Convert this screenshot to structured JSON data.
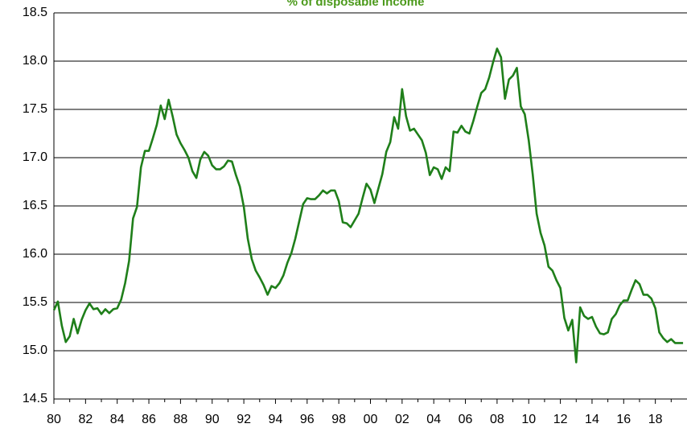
{
  "chart_data": {
    "type": "line",
    "title": "% of disposable income",
    "x": [
      1980,
      1980.25,
      1980.5,
      1980.75,
      1981,
      1981.25,
      1981.5,
      1981.75,
      1982,
      1982.25,
      1982.5,
      1982.75,
      1983,
      1983.25,
      1983.5,
      1983.75,
      1984,
      1984.25,
      1984.5,
      1984.75,
      1985,
      1985.25,
      1985.5,
      1985.75,
      1986,
      1986.25,
      1986.5,
      1986.75,
      1987,
      1987.25,
      1987.5,
      1987.75,
      1988,
      1988.25,
      1988.5,
      1988.75,
      1989,
      1989.25,
      1989.5,
      1989.75,
      1990,
      1990.25,
      1990.5,
      1990.75,
      1991,
      1991.25,
      1991.5,
      1991.75,
      1992,
      1992.25,
      1992.5,
      1992.75,
      1993,
      1993.25,
      1993.5,
      1993.75,
      1994,
      1994.25,
      1994.5,
      1994.75,
      1995,
      1995.25,
      1995.5,
      1995.75,
      1996,
      1996.25,
      1996.5,
      1996.75,
      1997,
      1997.25,
      1997.5,
      1997.75,
      1998,
      1998.25,
      1998.5,
      1998.75,
      1999,
      1999.25,
      1999.5,
      1999.75,
      2000,
      2000.25,
      2000.5,
      2000.75,
      2001,
      2001.25,
      2001.5,
      2001.75,
      2002,
      2002.25,
      2002.5,
      2002.75,
      2003,
      2003.25,
      2003.5,
      2003.75,
      2004,
      2004.25,
      2004.5,
      2004.75,
      2005,
      2005.25,
      2005.5,
      2005.75,
      2006,
      2006.25,
      2006.5,
      2006.75,
      2007,
      2007.25,
      2007.5,
      2007.75,
      2008,
      2008.25,
      2008.5,
      2008.75,
      2009,
      2009.25,
      2009.5,
      2009.75,
      2010,
      2010.25,
      2010.5,
      2010.75,
      2011,
      2011.25,
      2011.5,
      2011.75,
      2012,
      2012.25,
      2012.5,
      2012.75,
      2013,
      2013.25,
      2013.5,
      2013.75,
      2014,
      2014.25,
      2014.5,
      2014.75,
      2015,
      2015.25,
      2015.5,
      2015.75,
      2016,
      2016.25,
      2016.5,
      2016.75,
      2017,
      2017.25,
      2017.5,
      2017.75,
      2018,
      2018.25,
      2018.5,
      2018.75,
      2019,
      2019.25,
      2019.5,
      2019.75
    ],
    "series": [
      {
        "color": "#1f7f1a",
        "values": [
          15.42,
          15.51,
          15.26,
          15.09,
          15.15,
          15.33,
          15.18,
          15.32,
          15.42,
          15.49,
          15.43,
          15.44,
          15.38,
          15.43,
          15.39,
          15.43,
          15.44,
          15.53,
          15.7,
          15.93,
          16.37,
          16.49,
          16.9,
          17.07,
          17.07,
          17.2,
          17.34,
          17.54,
          17.4,
          17.6,
          17.43,
          17.24,
          17.15,
          17.08,
          17.0,
          16.86,
          16.79,
          16.98,
          17.06,
          17.02,
          16.92,
          16.88,
          16.88,
          16.91,
          16.97,
          16.96,
          16.82,
          16.7,
          16.49,
          16.16,
          15.95,
          15.83,
          15.76,
          15.68,
          15.58,
          15.67,
          15.65,
          15.7,
          15.78,
          15.91,
          16.01,
          16.16,
          16.34,
          16.52,
          16.58,
          16.57,
          16.57,
          16.61,
          16.66,
          16.63,
          16.66,
          16.66,
          16.55,
          16.33,
          16.32,
          16.28,
          16.35,
          16.42,
          16.58,
          16.73,
          16.67,
          16.53,
          16.68,
          16.83,
          17.06,
          17.16,
          17.42,
          17.3,
          17.71,
          17.43,
          17.28,
          17.3,
          17.24,
          17.18,
          17.05,
          16.82,
          16.9,
          16.88,
          16.78,
          16.9,
          16.86,
          17.27,
          17.26,
          17.33,
          17.27,
          17.25,
          17.38,
          17.53,
          17.67,
          17.71,
          17.83,
          17.99,
          18.13,
          18.04,
          17.61,
          17.81,
          17.85,
          17.93,
          17.53,
          17.45,
          17.18,
          16.83,
          16.42,
          16.22,
          16.09,
          15.87,
          15.83,
          15.73,
          15.65,
          15.34,
          15.21,
          15.32,
          14.88,
          15.45,
          15.36,
          15.33,
          15.35,
          15.25,
          15.18,
          15.17,
          15.19,
          15.33,
          15.38,
          15.47,
          15.52,
          15.52,
          15.63,
          15.73,
          15.69,
          15.58,
          15.58,
          15.54,
          15.44,
          15.19,
          15.13,
          15.09,
          15.12,
          15.08,
          15.08,
          15.08
        ]
      }
    ],
    "xlim": [
      1980,
      2020
    ],
    "xticks": [
      {
        "value": 1980,
        "label": "80"
      },
      {
        "value": 1982,
        "label": "82"
      },
      {
        "value": 1984,
        "label": "84"
      },
      {
        "value": 1986,
        "label": "86"
      },
      {
        "value": 1988,
        "label": "88"
      },
      {
        "value": 1990,
        "label": "90"
      },
      {
        "value": 1992,
        "label": "92"
      },
      {
        "value": 1994,
        "label": "94"
      },
      {
        "value": 1996,
        "label": "96"
      },
      {
        "value": 1998,
        "label": "98"
      },
      {
        "value": 2000,
        "label": "00"
      },
      {
        "value": 2002,
        "label": "02"
      },
      {
        "value": 2004,
        "label": "04"
      },
      {
        "value": 2006,
        "label": "06"
      },
      {
        "value": 2008,
        "label": "08"
      },
      {
        "value": 2010,
        "label": "10"
      },
      {
        "value": 2012,
        "label": "12"
      },
      {
        "value": 2014,
        "label": "14"
      },
      {
        "value": 2016,
        "label": "16"
      },
      {
        "value": 2018,
        "label": "18"
      }
    ],
    "xminorticks": [
      1981,
      1983,
      1985,
      1987,
      1989,
      1991,
      1993,
      1995,
      1997,
      1999,
      2001,
      2003,
      2005,
      2007,
      2009,
      2011,
      2013,
      2015,
      2017,
      2019
    ],
    "ylim": [
      14.5,
      18.5
    ],
    "yticks": [
      {
        "value": 14.5,
        "label": "14.5"
      },
      {
        "value": 15,
        "label": "15.0"
      },
      {
        "value": 15.5,
        "label": "15.5"
      },
      {
        "value": 16,
        "label": "16.0"
      },
      {
        "value": 16.5,
        "label": "16.5"
      },
      {
        "value": 17,
        "label": "17.0"
      },
      {
        "value": 17.5,
        "label": "17.5"
      },
      {
        "value": 18,
        "label": "18.0"
      },
      {
        "value": 18.5,
        "label": "18.5"
      }
    ],
    "grid": true
  }
}
